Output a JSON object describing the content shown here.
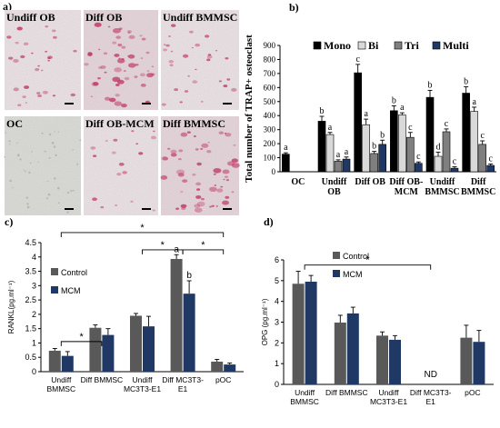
{
  "panel_a": {
    "letter": "a)",
    "images": [
      {
        "label": "Undiff OB",
        "stain": "sparse"
      },
      {
        "label": "Diff OB",
        "stain": "dense"
      },
      {
        "label": "Undiff BMMSC",
        "stain": "sparse"
      },
      {
        "label": "OC",
        "stain": "grey"
      },
      {
        "label": "Diff OB-MCM",
        "stain": "faint"
      },
      {
        "label": "Diff BMMSC",
        "stain": "dense"
      }
    ]
  },
  "chart_data": [
    {
      "panel": "b)",
      "type": "bar",
      "ylabel": "Total number of TRAP+ osteoclast",
      "ylim": [
        0,
        900
      ],
      "yticks": [
        0,
        100,
        200,
        300,
        400,
        500,
        600,
        700,
        800,
        900
      ],
      "categories": [
        "OC",
        "Undiff OB",
        "Diff OB",
        "Diff OB-MCM",
        "Undiff BMMSC",
        "Diff BMMSC"
      ],
      "legend_position": "top",
      "series": [
        {
          "name": "Mono",
          "color": "#000000",
          "values": [
            125,
            360,
            705,
            435,
            530,
            560
          ],
          "errors": [
            10,
            35,
            60,
            35,
            50,
            45
          ],
          "letters": [
            "a",
            "b",
            "c",
            "b",
            "b",
            "b"
          ]
        },
        {
          "name": "Bi",
          "color": "#d9d9d9",
          "values": [
            0,
            265,
            335,
            405,
            110,
            430
          ],
          "errors": [
            0,
            15,
            40,
            15,
            30,
            30
          ],
          "letters": [
            "",
            "a",
            "a",
            "a",
            "d",
            "a"
          ]
        },
        {
          "name": "Tri",
          "color": "#7f7f7f",
          "values": [
            0,
            75,
            130,
            245,
            285,
            195
          ],
          "errors": [
            0,
            10,
            15,
            35,
            20,
            25
          ],
          "letters": [
            "",
            "a",
            "b",
            "c",
            "c",
            "c"
          ]
        },
        {
          "name": "Multi",
          "color": "#1f3864",
          "values": [
            0,
            90,
            195,
            60,
            25,
            45
          ],
          "errors": [
            0,
            15,
            30,
            10,
            10,
            10
          ],
          "letters": [
            "",
            "a",
            "b",
            "c",
            "c",
            "c"
          ]
        }
      ]
    },
    {
      "panel": "c)",
      "type": "bar",
      "ylabel": "RANKL(pg.ml⁻¹)",
      "ylim": [
        0,
        4.5
      ],
      "yticks": [
        "0",
        "0.5",
        "1",
        "1.5",
        "2",
        "2.5",
        "3",
        "3.5",
        "4",
        "4.5"
      ],
      "categories": [
        "Undiff BMMSC",
        "Diff BMMSC",
        "Undiff MC3T3-E1",
        "Diff MC3T3-E1",
        "pOC"
      ],
      "legend_position": "left",
      "series": [
        {
          "name": "Control",
          "color": "#595959",
          "values": [
            0.73,
            1.53,
            1.95,
            3.93,
            0.35
          ],
          "errors": [
            0.08,
            0.1,
            0.08,
            0.15,
            0.08
          ]
        },
        {
          "name": "MCM",
          "color": "#1f3864",
          "values": [
            0.55,
            1.28,
            1.58,
            2.72,
            0.25
          ],
          "errors": [
            0.15,
            0.22,
            0.35,
            0.45,
            0.05
          ]
        }
      ],
      "bar_letters": [
        {
          "category": 3,
          "series": 0,
          "text": "a"
        },
        {
          "category": 3,
          "series": 1,
          "text": "b"
        }
      ],
      "significance": [
        {
          "from": 0,
          "to": 1,
          "y": 1.05,
          "label": "*"
        },
        {
          "from": 0,
          "to": 4,
          "y": 4.85,
          "label": "*"
        },
        {
          "from": 2,
          "to": 3,
          "y": 4.25,
          "label": "*"
        },
        {
          "from": 3,
          "to": 4,
          "y": 4.25,
          "label": "*"
        }
      ]
    },
    {
      "panel": "d)",
      "type": "bar",
      "ylabel": "OPG (pg.ml⁻¹)",
      "ylim": [
        0,
        6
      ],
      "yticks": [
        0,
        1,
        2,
        3,
        4,
        5,
        6
      ],
      "categories": [
        "Undiff BMMSC",
        "Diff BMMSC",
        "Undiff MC3T3-E1",
        "Diff MC3T3-E1",
        "pOC"
      ],
      "legend_position": "top-left",
      "series": [
        {
          "name": "Control",
          "color": "#595959",
          "values": [
            4.85,
            2.98,
            2.35,
            null,
            2.25
          ],
          "errors": [
            0.6,
            0.35,
            0.18,
            0,
            0.6
          ]
        },
        {
          "name": "MCM",
          "color": "#1f3864",
          "values": [
            4.95,
            3.42,
            2.15,
            null,
            2.05
          ],
          "errors": [
            0.3,
            0.3,
            0.2,
            0,
            0.55
          ]
        }
      ],
      "annotations": [
        {
          "category": 3,
          "text": "ND"
        }
      ],
      "significance": [
        {
          "from": 0,
          "to": 3,
          "y": 5.75,
          "label": "*"
        }
      ]
    }
  ]
}
